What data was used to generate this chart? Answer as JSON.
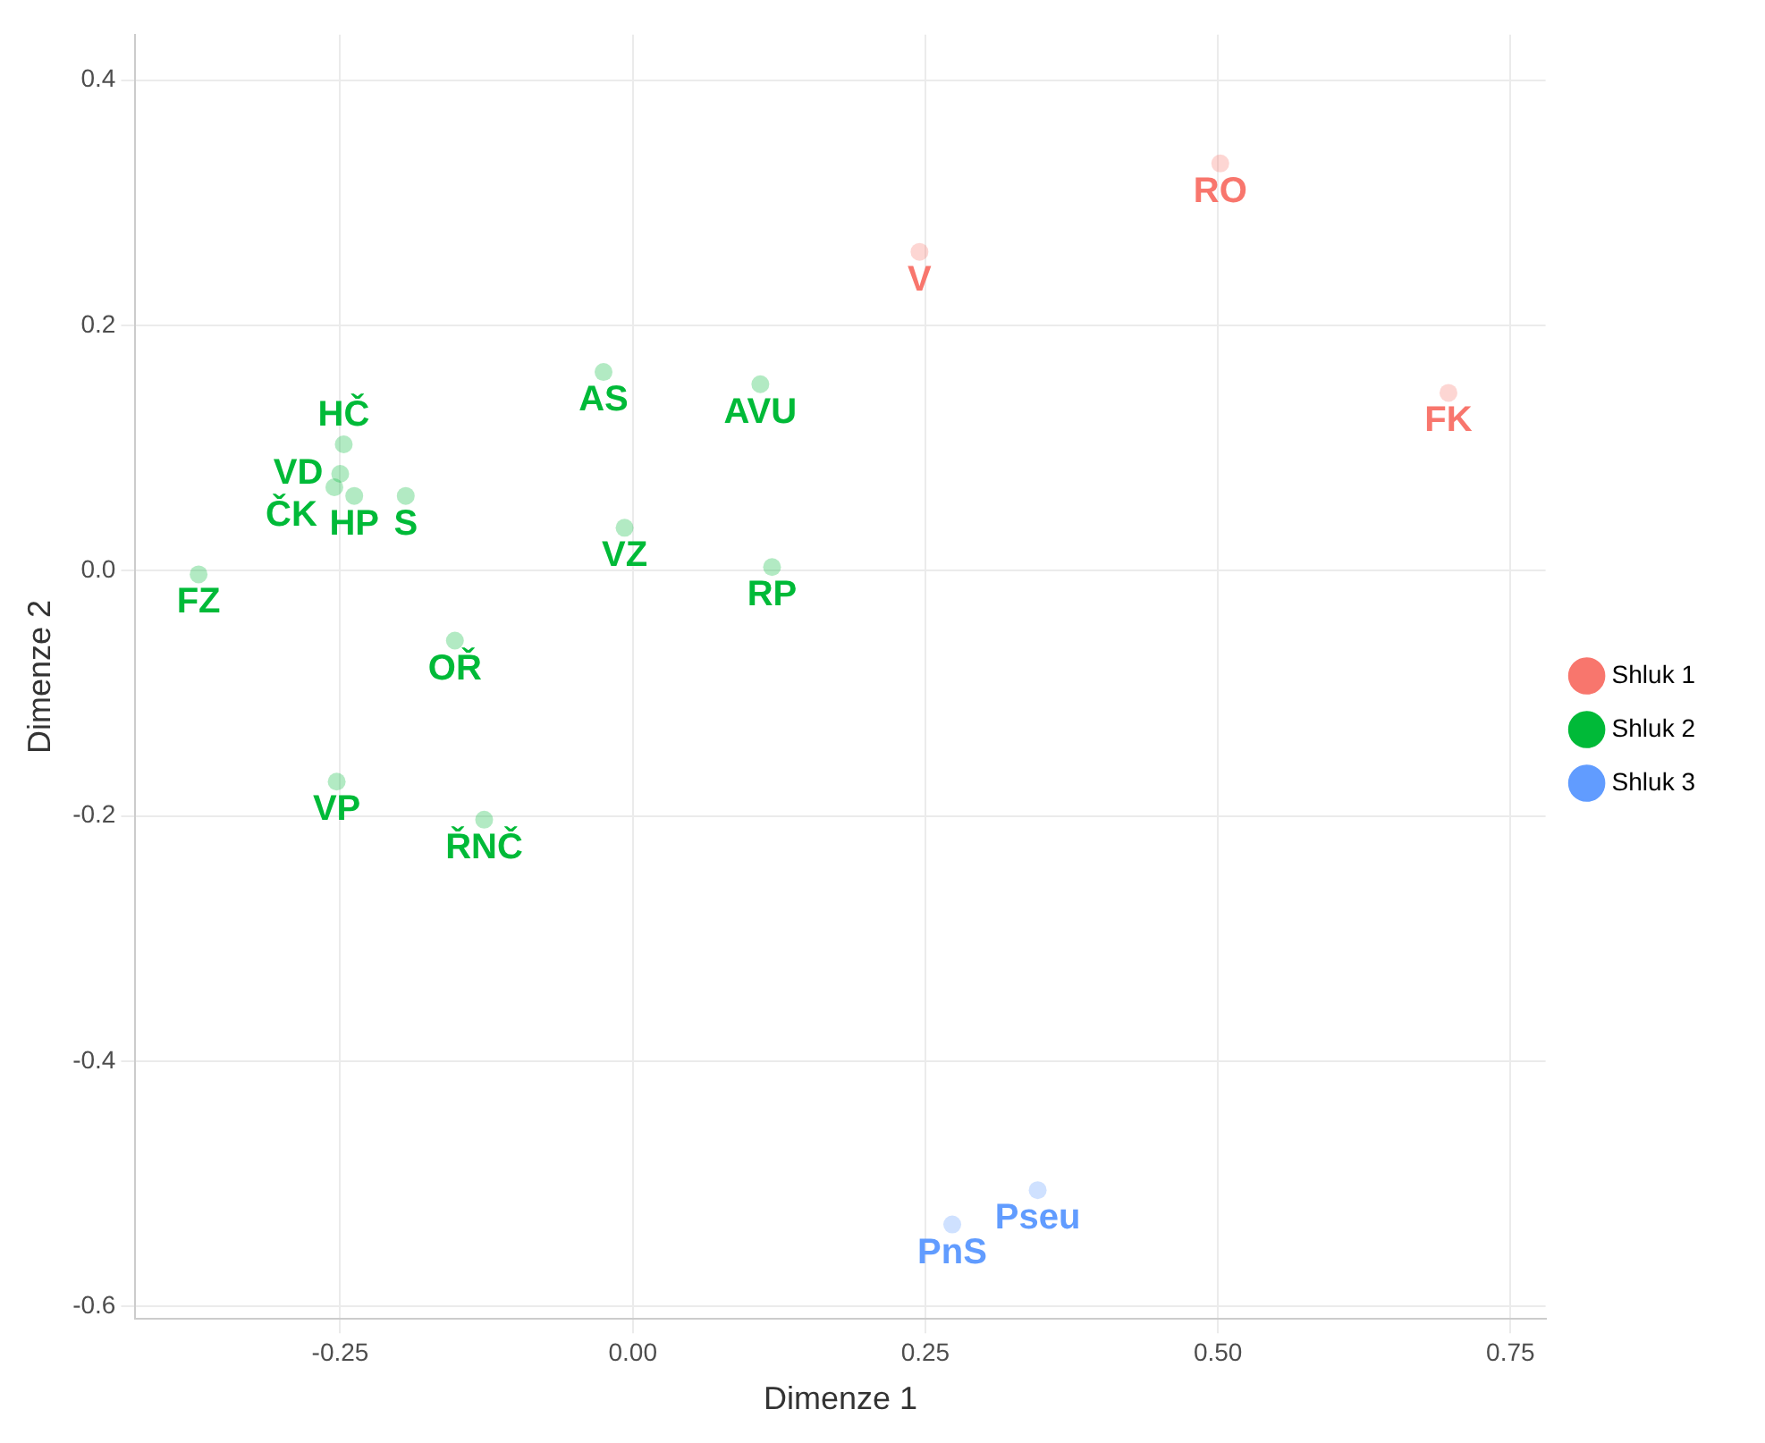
{
  "chart_data": {
    "type": "scatter",
    "xlabel": "Dimenze 1",
    "ylabel": "Dimenze 2",
    "xlim": [
      -0.425,
      0.78
    ],
    "ylim": [
      -0.61,
      0.437
    ],
    "xticks": [
      {
        "value": -0.25,
        "label": "-0.25"
      },
      {
        "value": 0,
        "label": "0.00"
      },
      {
        "value": 0.25,
        "label": "0.25"
      },
      {
        "value": 0.5,
        "label": "0.50"
      },
      {
        "value": 0.75,
        "label": "0.75"
      }
    ],
    "yticks": [
      -0.6,
      -0.4,
      -0.2,
      {
        "value": 0,
        "label": "0.0"
      },
      0.2,
      0.4
    ],
    "grid": true,
    "legend": "right",
    "marker": "circle",
    "series": [
      {
        "name": "Shluk 1",
        "color": "#f8766d",
        "x": [
          0.502,
          0.245,
          0.697
        ],
        "values": [
          0.332,
          0.26,
          0.145
        ],
        "value_labels": [
          "RO",
          "V",
          "FK"
        ]
      },
      {
        "name": "Shluk 2",
        "color": "#00ba38",
        "x": [
          -0.247,
          -0.25,
          -0.255,
          -0.238,
          -0.194,
          -0.025,
          0.109,
          -0.007,
          0.119,
          -0.371,
          -0.152,
          -0.127,
          -0.253
        ],
        "values": [
          0.103,
          0.079,
          0.068,
          0.061,
          0.061,
          0.162,
          0.152,
          0.035,
          0.003,
          -0.003,
          -0.057,
          -0.203,
          -0.172
        ],
        "value_labels": [
          "HČ",
          "VD",
          "ČK",
          "HP",
          "S",
          "AS",
          "AVU",
          "VZ",
          "RP",
          "FZ",
          "OŘ",
          "ŘNČ",
          "VP"
        ]
      },
      {
        "name": "Shluk 3",
        "color": "#619cff",
        "x": [
          0.346,
          0.273
        ],
        "values": [
          -0.505,
          -0.533
        ],
        "value_labels": [
          "Pseu",
          "PnS"
        ]
      }
    ]
  }
}
